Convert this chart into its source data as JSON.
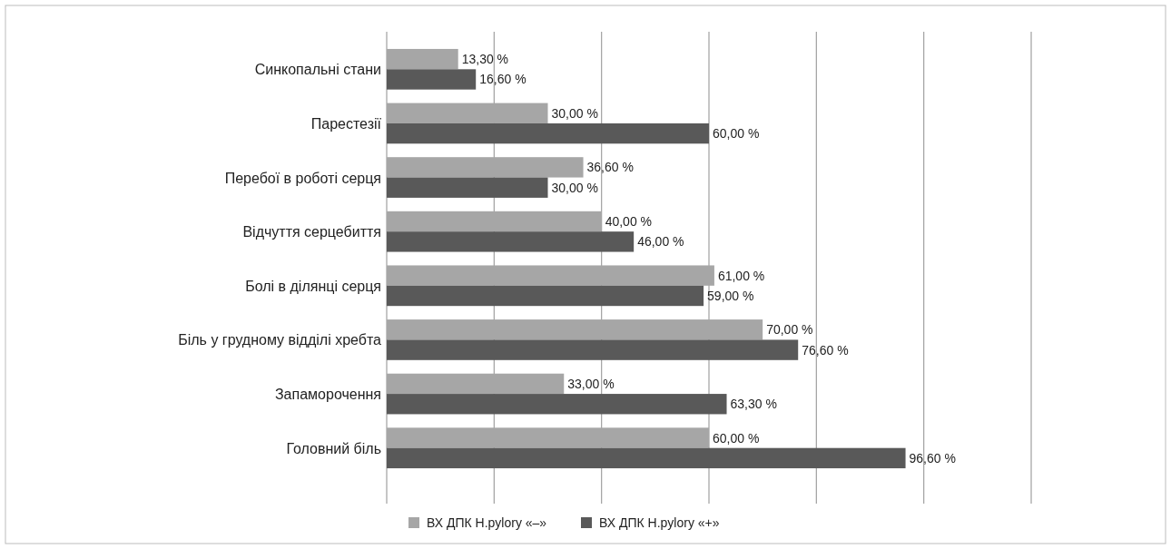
{
  "chart_data": {
    "type": "bar",
    "orientation": "horizontal",
    "categories": [
      "Синкопальні стани",
      "Парестезії",
      "Перебої в роботі серця",
      "Відчуття серцебиття",
      "Болі в ділянці серця",
      "Біль у грудному відділі хребта",
      "Запаморочення",
      "Головний біль"
    ],
    "series": [
      {
        "name": "ВХ ДПК H.pylory «–»",
        "color": "#a6a6a6",
        "values": [
          13.3,
          30,
          36.6,
          40,
          61,
          70,
          33,
          60
        ],
        "value_labels": [
          "13,30 %",
          "30,00 %",
          "36,60 %",
          "40,00 %",
          "61,00 %",
          "70,00 %",
          "33,00 %",
          "60,00 %"
        ]
      },
      {
        "name": "ВХ ДПК H.pylory «+»",
        "color": "#595959",
        "values": [
          16.6,
          60,
          30,
          46,
          59,
          76.6,
          63.3,
          96.6
        ],
        "value_labels": [
          "16,60 %",
          "60,00 %",
          "30,00 %",
          "46,00 %",
          "59,00 %",
          "76,60 %",
          "63,30 %",
          "96,60 %"
        ]
      }
    ],
    "xlim": [
      0,
      120
    ],
    "xticks": [
      {
        "value": 0,
        "label": null
      },
      {
        "value": 20,
        "label": null
      },
      {
        "value": 40,
        "label": null
      },
      {
        "value": 60,
        "label": null
      },
      {
        "value": 80,
        "label": null
      },
      {
        "value": 100,
        "label": null
      },
      {
        "value": 120,
        "label": null
      }
    ],
    "grid": "x",
    "tick_labels": "y",
    "legend": "bottom"
  }
}
